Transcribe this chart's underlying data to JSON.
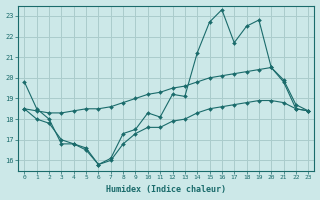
{
  "background_color": "#cce8e8",
  "grid_color": "#aacccc",
  "line_color": "#1a6b6b",
  "xlabel": "Humidex (Indice chaleur)",
  "ylim": [
    15.5,
    23.5
  ],
  "xlim": [
    -0.5,
    23.5
  ],
  "yticks": [
    16,
    17,
    18,
    19,
    20,
    21,
    22,
    23
  ],
  "xticks": [
    0,
    1,
    2,
    3,
    4,
    5,
    6,
    7,
    8,
    9,
    10,
    11,
    12,
    13,
    14,
    15,
    16,
    17,
    18,
    19,
    20,
    21,
    22,
    23
  ],
  "series": [
    {
      "x": [
        0,
        1,
        2,
        3,
        4,
        5,
        6,
        7,
        8,
        9,
        10,
        11,
        12,
        13,
        14,
        15,
        16,
        17,
        18,
        19,
        20,
        21,
        22,
        23
      ],
      "y": [
        19.8,
        18.5,
        18.0,
        16.8,
        16.8,
        16.5,
        15.8,
        16.1,
        17.3,
        17.5,
        18.3,
        18.1,
        19.2,
        19.1,
        21.2,
        22.7,
        23.3,
        21.7,
        22.5,
        22.8,
        20.5,
        19.8,
        18.5,
        18.4
      ]
    },
    {
      "x": [
        0,
        1,
        2,
        3,
        4,
        5,
        6,
        7,
        8,
        9,
        10,
        11,
        12,
        13,
        14,
        15,
        16,
        17,
        18,
        19,
        20,
        21,
        22,
        23
      ],
      "y": [
        18.5,
        18.4,
        18.3,
        18.3,
        18.4,
        18.5,
        18.5,
        18.6,
        18.8,
        19.0,
        19.2,
        19.3,
        19.5,
        19.6,
        19.8,
        20.0,
        20.1,
        20.2,
        20.3,
        20.4,
        20.5,
        19.9,
        18.7,
        18.4
      ]
    },
    {
      "x": [
        0,
        1,
        2,
        3,
        4,
        5,
        6,
        7,
        8,
        9,
        10,
        11,
        12,
        13,
        14,
        15,
        16,
        17,
        18,
        19,
        20,
        21,
        22,
        23
      ],
      "y": [
        18.5,
        18.0,
        17.8,
        17.0,
        16.8,
        16.6,
        15.8,
        16.0,
        16.8,
        17.3,
        17.6,
        17.6,
        17.9,
        18.0,
        18.3,
        18.5,
        18.6,
        18.7,
        18.8,
        18.9,
        18.9,
        18.8,
        18.5,
        18.4
      ]
    }
  ]
}
